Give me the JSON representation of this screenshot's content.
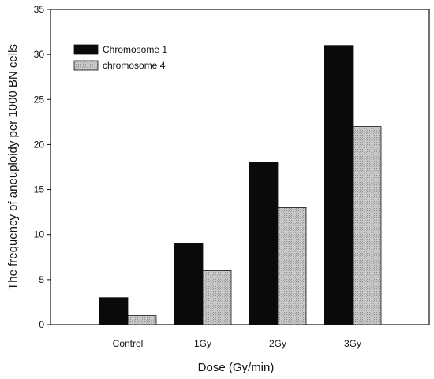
{
  "chart_data": {
    "type": "bar",
    "title": "",
    "xlabel": "Dose (Gy/min)",
    "ylabel": "The frequency of aneuploidy per 1000 BN cells",
    "categories": [
      "Control",
      "1Gy",
      "2Gy",
      "3Gy"
    ],
    "series": [
      {
        "name": "Chromosome 1",
        "values": [
          3,
          9,
          18,
          31
        ],
        "color": "#0a0a0a"
      },
      {
        "name": "chromosome 4",
        "values": [
          1,
          6,
          13,
          22
        ],
        "color": "#c4c4c4"
      }
    ],
    "ylim": [
      0,
      35
    ],
    "yticks": [
      0,
      5,
      10,
      15,
      20,
      25,
      30,
      35
    ],
    "grid": false,
    "legend_position": "top-left"
  }
}
